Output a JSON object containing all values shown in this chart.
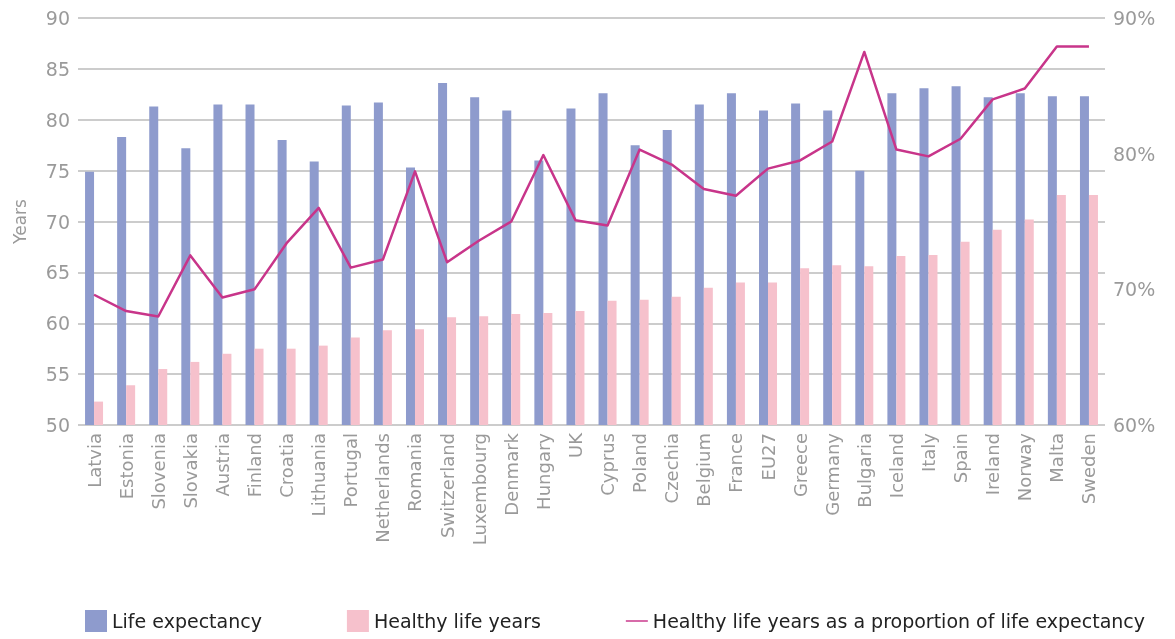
{
  "chart_data": {
    "type": "bar",
    "ylabel": "Years",
    "categories": [
      "Latvia",
      "Estonia",
      "Slovenia",
      "Slovakia",
      "Austria",
      "Finland",
      "Croatia",
      "Lithuania",
      "Portugal",
      "Netherlands",
      "Romania",
      "Switzerland",
      "Luxembourg",
      "Denmark",
      "Hungary",
      "UK",
      "Cyprus",
      "Poland",
      "Czechia",
      "Belgium",
      "France",
      "EU27",
      "Greece",
      "Germany",
      "Bulgaria",
      "Iceland",
      "Italy",
      "Spain",
      "Ireland",
      "Norway",
      "Malta",
      "Sweden"
    ],
    "series": [
      {
        "name": "Life expectancy",
        "color": "#8e9bcd",
        "values": [
          74.9,
          78.3,
          81.3,
          77.2,
          81.5,
          81.5,
          78.0,
          75.9,
          81.4,
          81.7,
          75.3,
          83.6,
          82.2,
          80.9,
          76.0,
          81.1,
          82.6,
          77.5,
          79.0,
          81.5,
          82.6,
          80.9,
          81.6,
          80.9,
          75.0,
          82.6,
          83.1,
          83.3,
          82.2,
          82.6,
          82.3,
          82.3
        ]
      },
      {
        "name": "Healthy life years",
        "color": "#f6c1cc",
        "values": [
          52.3,
          53.9,
          55.5,
          56.2,
          57.0,
          57.5,
          57.5,
          57.8,
          58.6,
          59.3,
          59.4,
          60.6,
          60.7,
          60.9,
          61.0,
          61.2,
          62.2,
          62.3,
          62.6,
          63.5,
          64.0,
          64.0,
          65.4,
          65.7,
          65.6,
          66.6,
          66.7,
          68.0,
          69.2,
          70.2,
          72.6,
          72.6
        ]
      },
      {
        "name": "Healthy life years as a proportion of life expectancy",
        "type": "line",
        "axis": "y2",
        "color": "#c8358a",
        "values": [
          69.6,
          68.4,
          68.0,
          72.5,
          69.4,
          70.0,
          73.4,
          76.0,
          71.6,
          72.2,
          78.7,
          72.0,
          73.6,
          75.0,
          79.9,
          75.1,
          74.7,
          80.3,
          79.2,
          77.4,
          76.9,
          78.9,
          79.5,
          80.9,
          87.5,
          80.3,
          79.8,
          81.1,
          84.0,
          84.8,
          87.9,
          87.9
        ]
      }
    ],
    "ylim": [
      50,
      90
    ],
    "yticks": [
      50,
      55,
      60,
      65,
      70,
      75,
      80,
      85,
      90
    ],
    "y2lim": [
      60,
      90
    ],
    "y2ticks": [
      {
        "value": 60,
        "label": "60%"
      },
      {
        "value": 70,
        "label": "70%"
      },
      {
        "value": 80,
        "label": "80%"
      },
      {
        "value": 90,
        "label": "90%"
      }
    ],
    "grid": "y",
    "legend": "bottom",
    "marker": "none",
    "line_style": "solid"
  }
}
